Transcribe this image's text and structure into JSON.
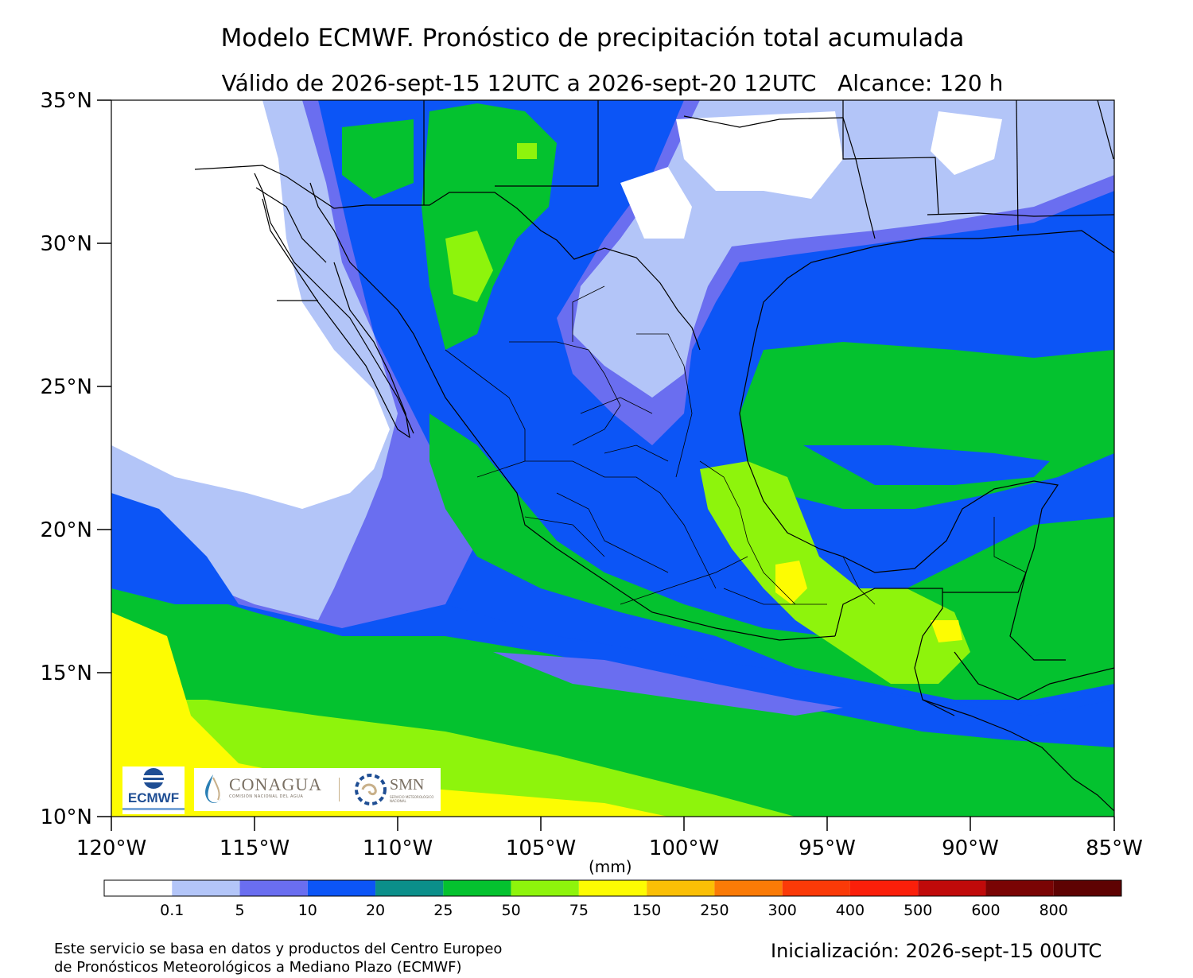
{
  "title": "Modelo ECMWF. Pronóstico de precipitación total acumulada",
  "subtitle": "Válido de 2026-sept-15 12UTC a 2026-sept-20 12UTC   Alcance: 120 h",
  "axes": {
    "lat_labels": [
      "35°N",
      "30°N",
      "25°N",
      "20°N",
      "15°N",
      "10°N"
    ],
    "lat_values": [
      35,
      30,
      25,
      20,
      15,
      10
    ],
    "lon_labels": [
      "120°W",
      "115°W",
      "110°W",
      "105°W",
      "100°W",
      "95°W",
      "90°W",
      "85°W"
    ],
    "lon_values": [
      -120,
      -115,
      -110,
      -105,
      -100,
      -95,
      -90,
      -85
    ],
    "lat_range": [
      10,
      35
    ],
    "lon_range": [
      -120,
      -85
    ]
  },
  "colorbar": {
    "unit": "(mm)",
    "labels": [
      "0.1",
      "5",
      "10",
      "20",
      "25",
      "50",
      "75",
      "150",
      "250",
      "300",
      "400",
      "500",
      "600",
      "800"
    ],
    "colors": [
      "#ffffff",
      "#b3c5f8",
      "#6a6ef0",
      "#0c55f6",
      "#0b8f8a",
      "#04c22f",
      "#8ef40c",
      "#fdfc02",
      "#fbbf05",
      "#fb7b06",
      "#fb3a08",
      "#fb1f0a",
      "#c00a0a",
      "#7a0404",
      "#5e0202"
    ]
  },
  "logos": {
    "ecmwf": "ECMWF",
    "conagua": "CONAGUA",
    "conagua_sub": "COMISIÓN NACIONAL DEL AGUA",
    "smn": "SMN",
    "smn_sub": "SERVICIO METEOROLÓGICO NACIONAL"
  },
  "footer": {
    "left_line1": "Este servicio se basa en datos y productos del Centro Europeo",
    "left_line2": "de Pronósticos Meteorológicos a Mediano Plazo (ECMWF)",
    "init": "Inicialización: 2026-sept-15 00UTC"
  }
}
